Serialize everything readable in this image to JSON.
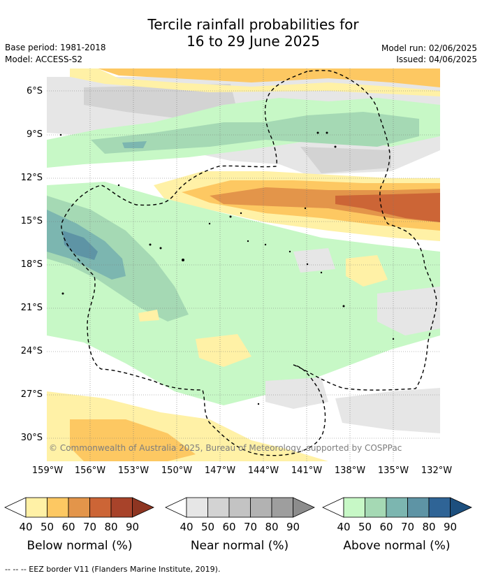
{
  "title": {
    "line1": "Tercile rainfall probabilities for",
    "line2": "16 to 29 June 2025"
  },
  "meta": {
    "base_period": "Base period: 1981-2018",
    "model": "Model: ACCESS-S2",
    "model_run": "Model run: 02/06/2025",
    "issued": "Issued: 04/06/2025"
  },
  "map": {
    "lat_labels": [
      "6°S",
      "9°S",
      "12°S",
      "15°S",
      "18°S",
      "21°S",
      "24°S",
      "27°S",
      "30°S"
    ],
    "lon_labels": [
      "159°W",
      "156°W",
      "153°W",
      "150°W",
      "147°W",
      "144°W",
      "141°W",
      "138°W",
      "135°W",
      "132°W"
    ],
    "copyright": "© Commonwealth of Australia 2025, Bureau of Meteorology, supported by COSPPac",
    "border_style": "dashed"
  },
  "legend": {
    "below": {
      "title": "Below normal (%)",
      "ticks": [
        "40",
        "50",
        "60",
        "70",
        "80",
        "90"
      ],
      "colors": [
        "#fff1a6",
        "#fdc862",
        "#e3954a",
        "#cc6536",
        "#a8432a",
        "#8e3521"
      ]
    },
    "near": {
      "title": "Near normal (%)",
      "ticks": [
        "40",
        "50",
        "60",
        "70",
        "80",
        "90"
      ],
      "colors": [
        "#e6e6e6",
        "#d3d3d3",
        "#c3c3c3",
        "#b2b2b2",
        "#9e9e9e",
        "#8c8c8c"
      ]
    },
    "above": {
      "title": "Above normal (%)",
      "ticks": [
        "40",
        "50",
        "60",
        "70",
        "80",
        "90"
      ],
      "colors": [
        "#c7f8c6",
        "#a5d9b4",
        "#7cb6b0",
        "#5e94a5",
        "#2f6496",
        "#1d4f7e"
      ]
    }
  },
  "footer": "--  --  -- EEZ border V11 (Flanders Marine Institute, 2019)."
}
